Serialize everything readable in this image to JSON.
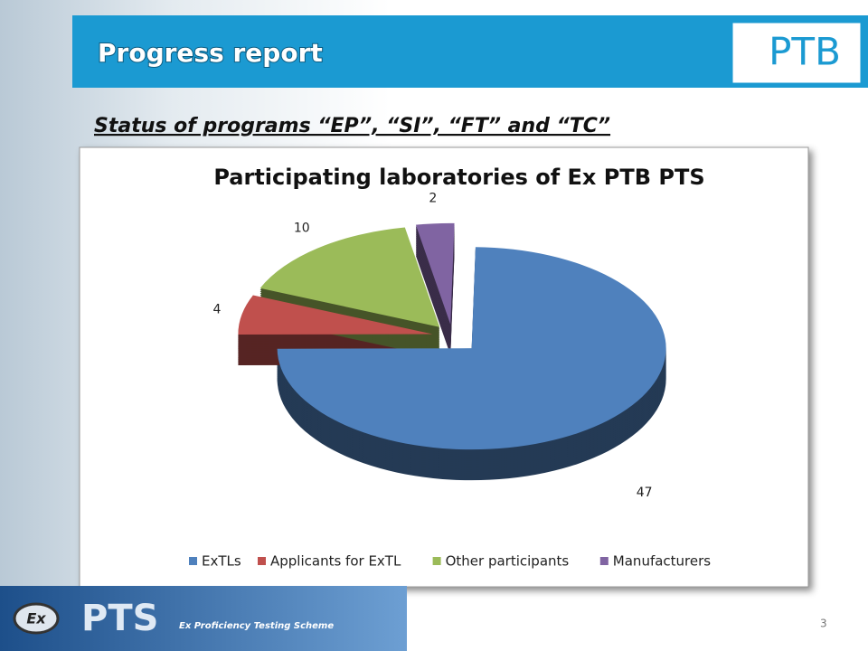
{
  "slide": {
    "title": "Progress report",
    "subtitle": "Status of programs “EP”, “SI”, “FT” and “TC”",
    "logo": "PTB",
    "footer_badge": "Ex",
    "footer_brand": "PTS",
    "footer_text": "Ex Proficiency Testing Scheme",
    "page_number": "3"
  },
  "chart_data": {
    "type": "pie",
    "title": "Participating laboratories of Ex PTB PTS",
    "categories": [
      "ExTLs",
      "Applicants for ExTL",
      "Other participants",
      "Manufacturers"
    ],
    "values": [
      47,
      4,
      10,
      2
    ],
    "colors": [
      "#4f81bd",
      "#c0504d",
      "#9bbb59",
      "#8064a2"
    ],
    "legend": "bottom"
  }
}
